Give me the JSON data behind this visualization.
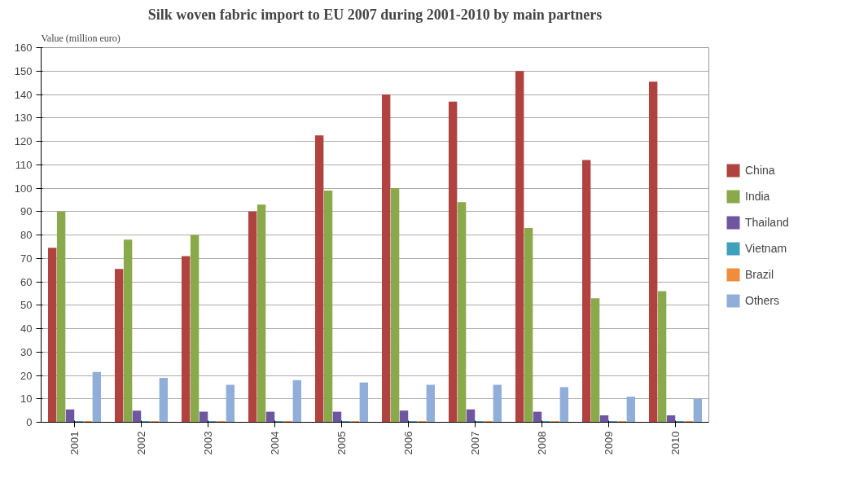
{
  "chart_data": {
    "type": "bar",
    "title": "Silk woven fabric import to EU 2007 during 2001-2010 by main partners",
    "ylabel": "Value (million euro)",
    "categories": [
      "2001",
      "2002",
      "2003",
      "2004",
      "2005",
      "2006",
      "2007",
      "2008",
      "2009",
      "2010"
    ],
    "series": [
      {
        "name": "China",
        "color": "#b04340",
        "values": [
          74.5,
          65.5,
          71,
          90,
          122.5,
          140,
          137,
          150,
          112,
          145.5
        ]
      },
      {
        "name": "India",
        "color": "#8aa94a",
        "values": [
          90,
          78,
          80,
          93,
          99,
          100,
          94,
          83,
          53,
          56
        ]
      },
      {
        "name": "Thailand",
        "color": "#6f56a0",
        "values": [
          5.5,
          5,
          4.5,
          4.5,
          4.5,
          5,
          5.5,
          4.5,
          3,
          3
        ]
      },
      {
        "name": "Vietnam",
        "color": "#3fa0bd",
        "values": [
          0.5,
          0.5,
          0.5,
          0.5,
          0.5,
          0.5,
          0.5,
          0.5,
          0.5,
          0.5
        ]
      },
      {
        "name": "Brazil",
        "color": "#ef8d3d",
        "values": [
          0.5,
          0.5,
          0.5,
          0.5,
          0.5,
          0.5,
          0.5,
          0.5,
          0.5,
          0.5
        ]
      },
      {
        "name": "Others",
        "color": "#91aed9",
        "values": [
          21.5,
          19,
          16,
          18,
          17,
          16,
          16,
          15,
          11,
          10
        ]
      }
    ],
    "ylim": [
      0,
      160
    ],
    "yticks": [
      0,
      10,
      20,
      30,
      40,
      50,
      60,
      70,
      80,
      90,
      100,
      110,
      120,
      130,
      140,
      150,
      160
    ],
    "grid": "y",
    "legend": "right"
  }
}
